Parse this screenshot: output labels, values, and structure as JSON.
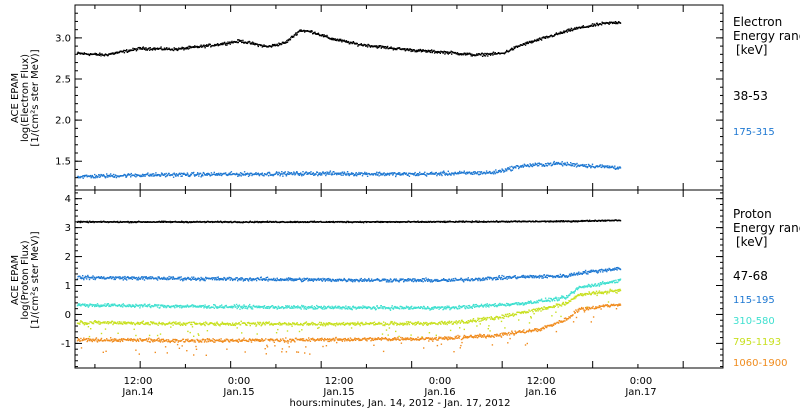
{
  "figure": {
    "xaxis_title": "hours:minutes, Jan. 14, 2012 - Jan. 17, 2012",
    "xticks": [
      {
        "time": "12:00",
        "date": "Jan.14",
        "day": 0.5
      },
      {
        "time": "0:00",
        "date": "Jan.15",
        "day": 1.0
      },
      {
        "time": "12:00",
        "date": "Jan.15",
        "day": 1.5
      },
      {
        "time": "0:00",
        "date": "Jan.16",
        "day": 2.0
      },
      {
        "time": "12:00",
        "date": "Jan.16",
        "day": 2.5
      },
      {
        "time": "0:00",
        "date": "Jan.17",
        "day": 3.0
      }
    ]
  },
  "chart_data": [
    {
      "type": "scatter",
      "ylabel_lines": [
        "ACE EPAM",
        "log(Electron Flux)",
        "[1/(cm²s ster MeV)]"
      ],
      "ylim": [
        1.15,
        3.4
      ],
      "yticks": [
        1.5,
        2.0,
        2.5,
        3.0
      ],
      "ytick_labels": [
        "1.5",
        "2.0",
        "2.5",
        "3.0"
      ],
      "xlim_days": [
        0.14,
        3.72
      ],
      "legend_title_lines": [
        "Electron",
        "Energy range",
        "[keV]"
      ],
      "series": [
        {
          "name": "38-53",
          "color": "#000000",
          "x": [
            0.15,
            0.3,
            0.5,
            0.7,
            0.9,
            1.05,
            1.2,
            1.3,
            1.38,
            1.45,
            1.55,
            1.7,
            1.9,
            2.05,
            2.2,
            2.35,
            2.5,
            2.6,
            2.75,
            2.9,
            3.05,
            3.15
          ],
          "y": [
            2.82,
            2.8,
            2.88,
            2.87,
            2.92,
            2.97,
            2.9,
            2.95,
            3.1,
            3.08,
            3.0,
            2.93,
            2.88,
            2.85,
            2.83,
            2.8,
            2.82,
            2.92,
            3.02,
            3.12,
            3.18,
            3.2
          ]
        },
        {
          "name": "175-315",
          "color": "#1e78d2",
          "x": [
            0.15,
            0.5,
            1.0,
            1.5,
            2.0,
            2.45,
            2.6,
            2.8,
            3.0,
            3.15
          ],
          "y": [
            1.32,
            1.34,
            1.35,
            1.36,
            1.35,
            1.37,
            1.45,
            1.48,
            1.45,
            1.43
          ]
        }
      ]
    },
    {
      "type": "scatter",
      "ylabel_lines": [
        "ACE EPAM",
        "log(Proton Flux)",
        "[1/(cm²s ster MeV)]"
      ],
      "ylim": [
        -1.85,
        4.3
      ],
      "yticks": [
        -1,
        0,
        1,
        2,
        3,
        4
      ],
      "ytick_labels": [
        "-1",
        "0",
        "1",
        "2",
        "3",
        "4"
      ],
      "xlim_days": [
        0.14,
        3.72
      ],
      "legend_title_lines": [
        "Proton",
        "Energy range",
        "[keV]"
      ],
      "series": [
        {
          "name": "47-68",
          "color": "#000000",
          "x": [
            0.15,
            1.0,
            2.0,
            2.85,
            3.15
          ],
          "y": [
            3.22,
            3.22,
            3.22,
            3.24,
            3.28
          ]
        },
        {
          "name": "115-195",
          "color": "#1e78d2",
          "x": [
            0.15,
            0.8,
            1.5,
            2.2,
            2.6,
            2.85,
            2.92,
            3.15
          ],
          "y": [
            1.3,
            1.26,
            1.22,
            1.2,
            1.32,
            1.35,
            1.45,
            1.62
          ]
        },
        {
          "name": "310-580",
          "color": "#40e0d0",
          "x": [
            0.15,
            0.8,
            1.5,
            2.2,
            2.6,
            2.85,
            2.92,
            3.15
          ],
          "y": [
            0.35,
            0.3,
            0.26,
            0.25,
            0.4,
            0.6,
            0.95,
            1.2
          ]
        },
        {
          "name": "795-1193",
          "color": "#c8e020",
          "x": [
            0.15,
            0.8,
            1.5,
            2.2,
            2.45,
            2.7,
            2.85,
            2.92,
            3.15
          ],
          "y": [
            -0.25,
            -0.3,
            -0.3,
            -0.28,
            -0.1,
            0.2,
            0.4,
            0.7,
            0.85
          ]
        },
        {
          "name": "1060-1900",
          "color": "#f08c1e",
          "x": [
            0.15,
            0.8,
            1.5,
            2.2,
            2.45,
            2.7,
            2.85,
            2.92,
            3.15
          ],
          "y": [
            -0.85,
            -0.88,
            -0.85,
            -0.8,
            -0.7,
            -0.5,
            -0.15,
            0.2,
            0.38
          ]
        }
      ]
    }
  ]
}
